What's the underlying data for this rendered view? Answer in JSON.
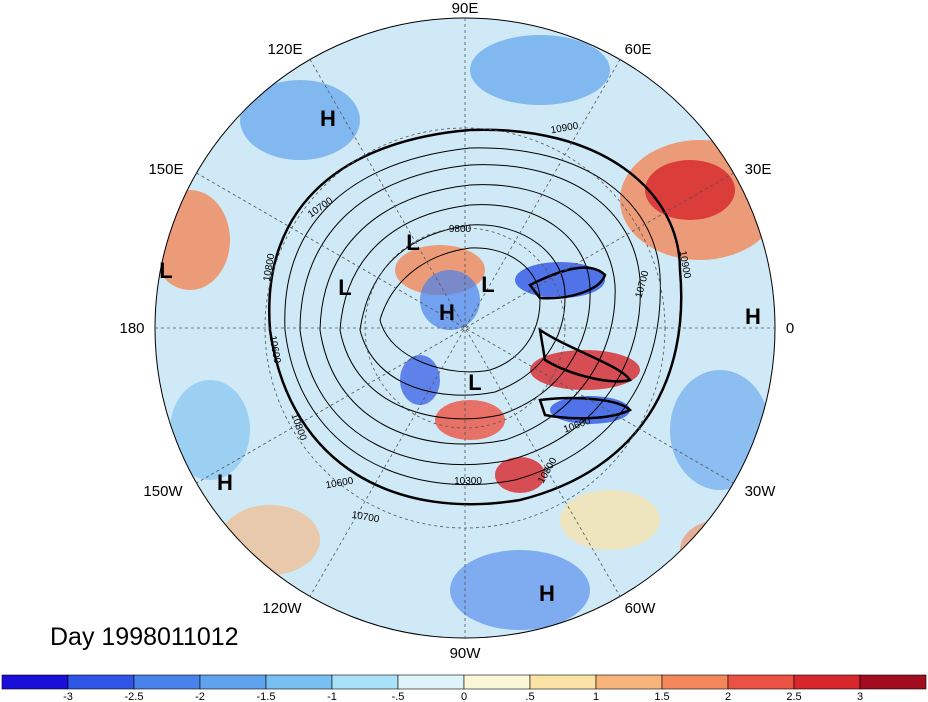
{
  "title": "Day 1998011012",
  "longitude_labels": {
    "lon_90e": "90E",
    "lon_60e": "60E",
    "lon_30e": "30E",
    "lon_0": "0",
    "lon_30w": "30W",
    "lon_60w": "60W",
    "lon_90w": "90W",
    "lon_120w": "120W",
    "lon_150w": "150W",
    "lon_180": "180",
    "lon_150e": "150E",
    "lon_120e": "120E"
  },
  "pressure_centers": [
    {
      "type": "H"
    },
    {
      "type": "L"
    },
    {
      "type": "L"
    },
    {
      "type": "L"
    },
    {
      "type": "H"
    },
    {
      "type": "L"
    },
    {
      "type": "L"
    },
    {
      "type": "H"
    },
    {
      "type": "H"
    },
    {
      "type": "H"
    }
  ],
  "contour_labels": [
    "10900",
    "10700",
    "9800",
    "10800",
    "10900",
    "10700",
    "10600",
    "10800",
    "10300",
    "10600",
    "10600",
    "10800",
    "10700"
  ],
  "colorbar": {
    "colors": [
      "#1a0fd8",
      "#2f55e6",
      "#4a82ec",
      "#5fa2ee",
      "#79c0f2",
      "#a9e2f8",
      "#dff3fb",
      "#fbf6d6",
      "#fbe3a6",
      "#f8b47a",
      "#f3875a",
      "#ec5244",
      "#d7262c",
      "#a10c21"
    ],
    "ticks": [
      "-3",
      "-2.5",
      "-2",
      "-1.5",
      "-1",
      "-.5",
      "0",
      ".5",
      "1",
      "1.5",
      "2",
      "2.5",
      "3"
    ]
  }
}
